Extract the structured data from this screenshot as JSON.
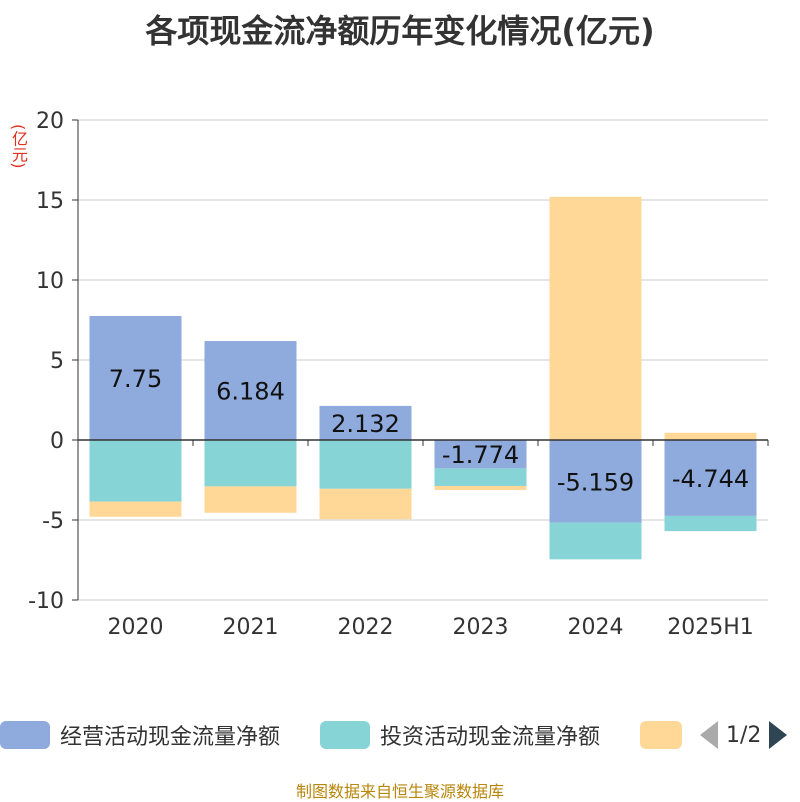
{
  "title": "各项现金流净额历年变化情况(亿元)",
  "unit_label": "(亿元)",
  "source": "制图数据来自恒生聚源数据库",
  "legend": {
    "items": [
      {
        "label": "经营活动现金流量净额",
        "color": "#8faadc"
      },
      {
        "label": "投资活动现金流量净额",
        "color": "#87d4d6"
      },
      {
        "label": "",
        "color": "#ffd898"
      }
    ],
    "page": "1/2"
  },
  "chart_data": {
    "type": "bar",
    "stacked": true,
    "categories": [
      "2020",
      "2021",
      "2022",
      "2023",
      "2024",
      "2025H1"
    ],
    "ylim": [
      -10,
      20
    ],
    "yticks": [
      20,
      15,
      10,
      5,
      0,
      -5,
      -10
    ],
    "grid": true,
    "legend_position": "bottom",
    "series": [
      {
        "name": "经营活动现金流量净额",
        "color": "#8faadc",
        "values": [
          7.75,
          6.184,
          2.132,
          -1.774,
          -5.159,
          -4.744
        ],
        "labels": [
          "7.75",
          "6.184",
          "2.132",
          "-1.774",
          "-5.159",
          "-4.744"
        ]
      },
      {
        "name": "投资活动现金流量净额",
        "color": "#87d4d6",
        "values": [
          -3.85,
          -2.9,
          -3.05,
          -1.1,
          -2.3,
          -0.95
        ]
      },
      {
        "color": "#ffd898",
        "values": [
          -0.95,
          -1.65,
          -1.9,
          -0.25,
          15.2,
          0.45
        ]
      }
    ]
  }
}
